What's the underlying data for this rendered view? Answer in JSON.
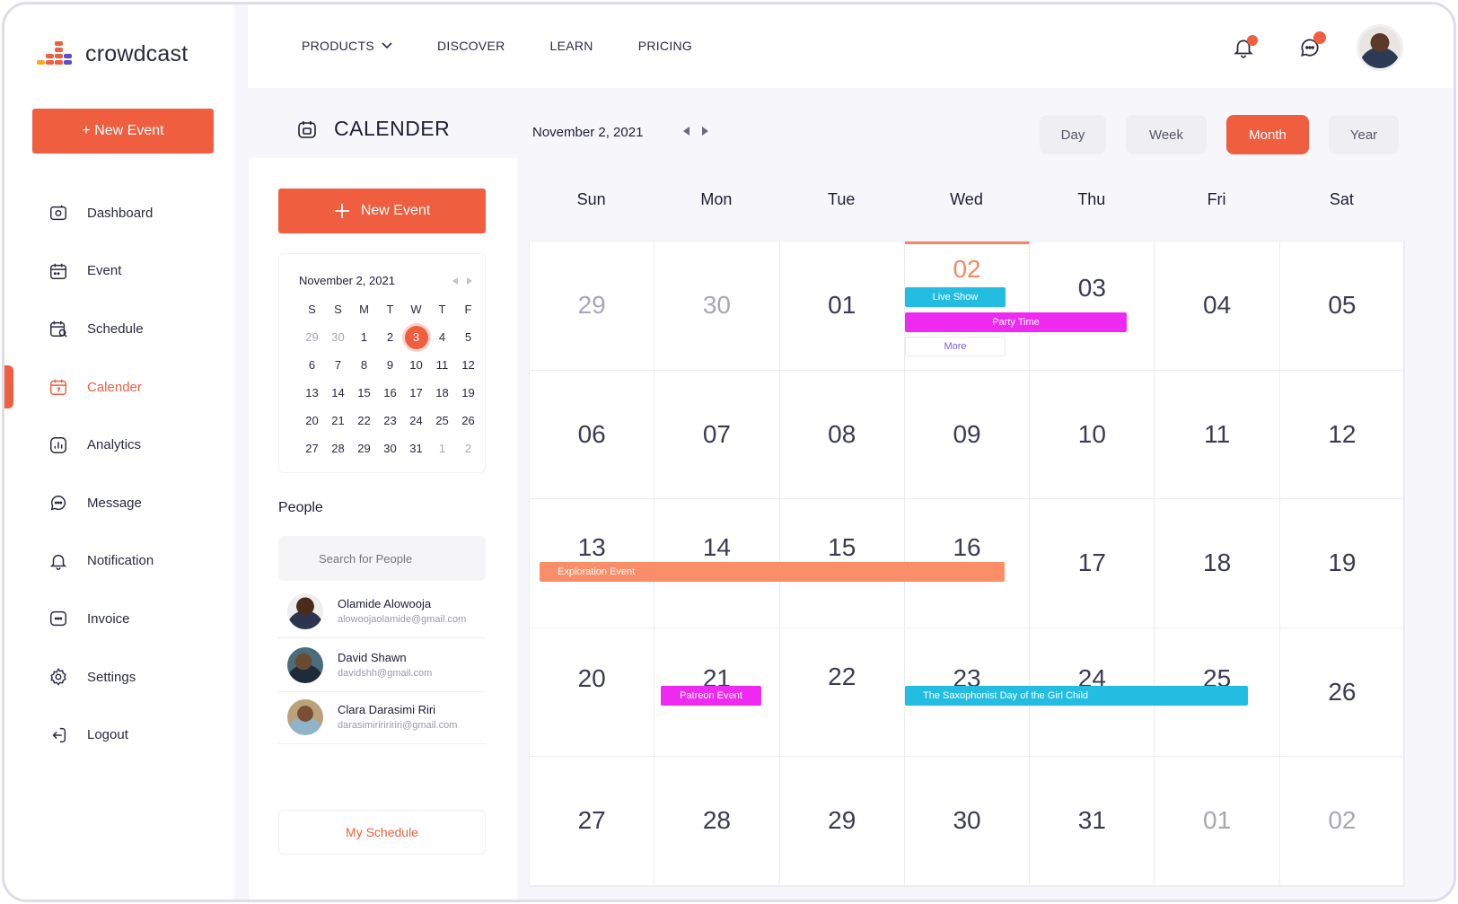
{
  "brand": {
    "name": "crowdcast"
  },
  "sidebar": {
    "new_event": "+ New Event",
    "items": [
      {
        "label": "Dashboard",
        "icon": "dashboard-icon"
      },
      {
        "label": "Event",
        "icon": "event-icon"
      },
      {
        "label": "Schedule",
        "icon": "schedule-icon"
      },
      {
        "label": "Calender",
        "icon": "calendar-icon",
        "active": true
      },
      {
        "label": "Analytics",
        "icon": "analytics-icon"
      },
      {
        "label": "Message",
        "icon": "message-icon"
      },
      {
        "label": "Notification",
        "icon": "bell-icon"
      },
      {
        "label": "Invoice",
        "icon": "invoice-icon"
      },
      {
        "label": "Settings",
        "icon": "gear-icon"
      },
      {
        "label": "Logout",
        "icon": "logout-icon"
      }
    ]
  },
  "topnav": {
    "products": "PRODUCTS",
    "discover": "DISCOVER",
    "learn": "LEARN",
    "pricing": "PRICING"
  },
  "header": {
    "title": "CALENDER",
    "current_date": "November 2, 2021"
  },
  "views": {
    "day": "Day",
    "week": "Week",
    "month": "Month",
    "year": "Year",
    "active": "Month"
  },
  "panel": {
    "new_event": "New Event",
    "mini_calendar": {
      "month_label": "November 2, 2021",
      "dow": [
        "S",
        "S",
        "M",
        "T",
        "W",
        "T",
        "F"
      ],
      "days": [
        "29",
        "30",
        "1",
        "2",
        "3",
        "4",
        "5",
        "6",
        "7",
        "8",
        "9",
        "10",
        "11",
        "12",
        "13",
        "14",
        "15",
        "16",
        "17",
        "18",
        "19",
        "20",
        "21",
        "22",
        "23",
        "24",
        "25",
        "26",
        "27",
        "28",
        "29",
        "30",
        "31",
        "1",
        "2"
      ],
      "selected": "3"
    },
    "people_title": "People",
    "search_placeholder": "Search for People",
    "people": [
      {
        "name": "Olamide Alowooja",
        "email": "alowoojaolamide@gmail.com"
      },
      {
        "name": "David Shawn",
        "email": "davidshh@gmail.com"
      },
      {
        "name": "Clara Darasimi Riri",
        "email": "darasimiririririri@gmail.com"
      }
    ],
    "my_schedule": "My Schedule"
  },
  "month": {
    "dow": [
      "Sun",
      "Mon",
      "Tue",
      "Wed",
      "Thu",
      "Fri",
      "Sat"
    ],
    "days": [
      "29",
      "30",
      "01",
      "02",
      "03",
      "04",
      "05",
      "06",
      "07",
      "08",
      "09",
      "10",
      "11",
      "12",
      "13",
      "14",
      "15",
      "16",
      "17",
      "18",
      "19",
      "20",
      "21",
      "22",
      "23",
      "24",
      "25",
      "26",
      "27",
      "28",
      "29",
      "30",
      "31",
      "01",
      "02"
    ],
    "today": "02",
    "events": {
      "live_show": "Live Show",
      "party_time": "Party Time",
      "more": "More",
      "exploration": "Exploration Event",
      "patreon": "Patreon Event",
      "saxophonist": "The Saxophonist Day of the Girl Child"
    }
  },
  "colors": {
    "accent": "#ef5e3e",
    "cyan": "#22bde0",
    "magenta": "#ee2af0",
    "salmon": "#fb8d68"
  }
}
